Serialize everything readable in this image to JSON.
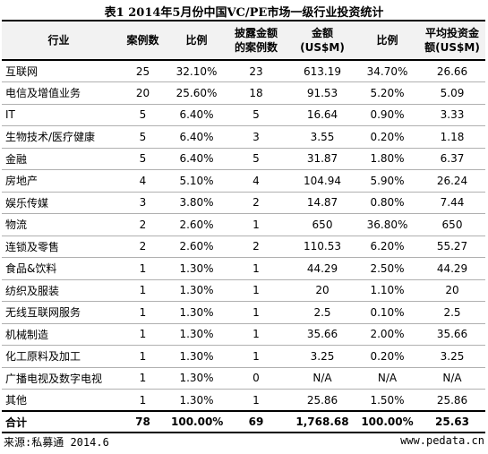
{
  "title": "表1 2014年5月份中国VC/PE市场一级行业投资统计",
  "headers": [
    "行业",
    "案例数",
    "比例",
    "披露金额\n的案例数",
    "金额\n(US$M)",
    "比例",
    "平均投资金\n额(US$M)"
  ],
  "rows": [
    [
      "互联网",
      "25",
      "32.10%",
      "23",
      "613.19",
      "34.70%",
      "26.66"
    ],
    [
      "电信及增值业务",
      "20",
      "25.60%",
      "18",
      "91.53",
      "5.20%",
      "5.09"
    ],
    [
      "IT",
      "5",
      "6.40%",
      "5",
      "16.64",
      "0.90%",
      "3.33"
    ],
    [
      "生物技术/医疗健康",
      "5",
      "6.40%",
      "3",
      "3.55",
      "0.20%",
      "1.18"
    ],
    [
      "金融",
      "5",
      "6.40%",
      "5",
      "31.87",
      "1.80%",
      "6.37"
    ],
    [
      "房地产",
      "4",
      "5.10%",
      "4",
      "104.94",
      "5.90%",
      "26.24"
    ],
    [
      "娱乐传媒",
      "3",
      "3.80%",
      "2",
      "14.87",
      "0.80%",
      "7.44"
    ],
    [
      "物流",
      "2",
      "2.60%",
      "1",
      "650",
      "36.80%",
      "650"
    ],
    [
      "连锁及零售",
      "2",
      "2.60%",
      "2",
      "110.53",
      "6.20%",
      "55.27"
    ],
    [
      "食品&饮料",
      "1",
      "1.30%",
      "1",
      "44.29",
      "2.50%",
      "44.29"
    ],
    [
      "纺织及服装",
      "1",
      "1.30%",
      "1",
      "20",
      "1.10%",
      "20"
    ],
    [
      "无线互联网服务",
      "1",
      "1.30%",
      "1",
      "2.5",
      "0.10%",
      "2.5"
    ],
    [
      "机械制造",
      "1",
      "1.30%",
      "1",
      "35.66",
      "2.00%",
      "35.66"
    ],
    [
      "化工原料及加工",
      "1",
      "1.30%",
      "1",
      "3.25",
      "0.20%",
      "3.25"
    ],
    [
      "广播电视及数字电视",
      "1",
      "1.30%",
      "0",
      "N/A",
      "N/A",
      "N/A"
    ],
    [
      "其他",
      "1",
      "1.30%",
      "1",
      "25.86",
      "1.50%",
      "25.86"
    ]
  ],
  "total": [
    "合计",
    "78",
    "100.00%",
    "69",
    "1,768.68",
    "100.00%",
    "25.63"
  ],
  "footer": {
    "source": "来源:私募通 2014.6",
    "site": "www.pedata.cn"
  }
}
